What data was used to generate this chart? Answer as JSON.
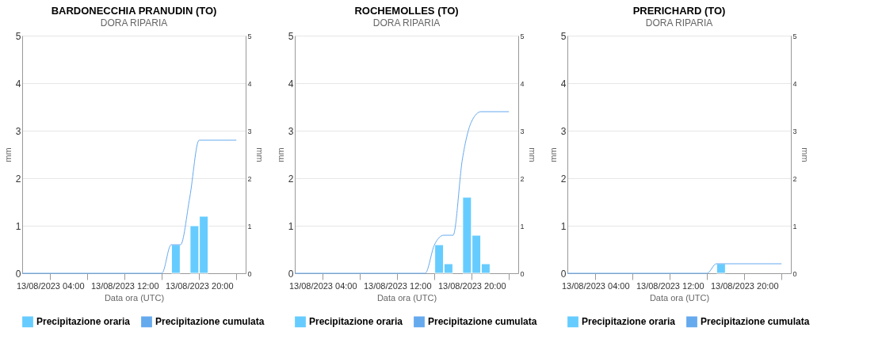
{
  "chart_data": [
    {
      "type": "bar",
      "title": "BARDONECCHIA PRANUDIN (TO)",
      "subtitle": "DORA RIPARIA",
      "xlabel": "Data ora (UTC)",
      "ylabel": "mm",
      "y2label": "mm",
      "xlim": [
        "2023-08-13T01:00",
        "2023-08-14T01:00"
      ],
      "xticks": [
        {
          "value": "2023-08-13T04:00",
          "label": "13/08/2023 04:00"
        },
        {
          "value": "2023-08-13T08:00",
          "label": null
        },
        {
          "value": "2023-08-13T12:00",
          "label": "13/08/2023 12:00"
        },
        {
          "value": "2023-08-13T16:00",
          "label": null
        },
        {
          "value": "2023-08-13T20:00",
          "label": "13/08/2023 20:00"
        },
        {
          "value": "2023-08-14T00:00",
          "label": null
        }
      ],
      "ylim": [
        0,
        5
      ],
      "yticks": [
        0,
        1,
        2,
        3,
        4,
        5
      ],
      "y2lim": [
        0,
        5
      ],
      "y2ticks": [
        0,
        1,
        2,
        3,
        4,
        5
      ],
      "grid": "y",
      "legend": "bottom",
      "series": [
        {
          "name": "Precipitazione oraria",
          "type": "bar",
          "color": "#66ccff",
          "x": [
            "2023-08-13T17:30",
            "2023-08-13T19:30",
            "2023-08-13T20:30"
          ],
          "values": [
            0.6,
            1.0,
            1.2
          ]
        },
        {
          "name": "Precipitazione cumulata",
          "type": "line",
          "axis": "y2",
          "color": "#66aaee",
          "x": [
            "2023-08-13T01:00",
            "2023-08-13T16:00",
            "2023-08-13T17:00",
            "2023-08-13T18:00",
            "2023-08-13T19:00",
            "2023-08-13T20:00",
            "2023-08-13T21:00",
            "2023-08-14T00:00"
          ],
          "values": [
            0,
            0,
            0.6,
            0.6,
            1.6,
            2.8,
            2.8,
            2.8
          ]
        }
      ]
    },
    {
      "type": "bar",
      "title": "ROCHEMOLLES (TO)",
      "subtitle": "DORA RIPARIA",
      "xlabel": "Data ora (UTC)",
      "ylabel": "mm",
      "y2label": "mm",
      "xlim": [
        "2023-08-13T01:00",
        "2023-08-14T01:00"
      ],
      "xticks": [
        {
          "value": "2023-08-13T04:00",
          "label": "13/08/2023 04:00"
        },
        {
          "value": "2023-08-13T08:00",
          "label": null
        },
        {
          "value": "2023-08-13T12:00",
          "label": "13/08/2023 12:00"
        },
        {
          "value": "2023-08-13T16:00",
          "label": null
        },
        {
          "value": "2023-08-13T20:00",
          "label": "13/08/2023 20:00"
        },
        {
          "value": "2023-08-14T00:00",
          "label": null
        }
      ],
      "ylim": [
        0,
        5
      ],
      "yticks": [
        0,
        1,
        2,
        3,
        4,
        5
      ],
      "y2lim": [
        0,
        5
      ],
      "y2ticks": [
        0,
        1,
        2,
        3,
        4,
        5
      ],
      "grid": "y",
      "legend": "bottom",
      "series": [
        {
          "name": "Precipitazione oraria",
          "type": "bar",
          "color": "#66ccff",
          "x": [
            "2023-08-13T16:30",
            "2023-08-13T17:30",
            "2023-08-13T19:30",
            "2023-08-13T20:30",
            "2023-08-13T21:30"
          ],
          "values": [
            0.6,
            0.2,
            1.6,
            0.8,
            0.2
          ]
        },
        {
          "name": "Precipitazione cumulata",
          "type": "line",
          "axis": "y2",
          "color": "#66aaee",
          "x": [
            "2023-08-13T01:00",
            "2023-08-13T15:00",
            "2023-08-13T16:00",
            "2023-08-13T17:00",
            "2023-08-13T18:00",
            "2023-08-13T19:00",
            "2023-08-13T20:00",
            "2023-08-13T21:00",
            "2023-08-14T00:00"
          ],
          "values": [
            0,
            0,
            0.6,
            0.8,
            0.8,
            2.4,
            3.2,
            3.4,
            3.4
          ]
        }
      ]
    },
    {
      "type": "bar",
      "title": "PRERICHARD (TO)",
      "subtitle": "DORA RIPARIA",
      "xlabel": "Data ora (UTC)",
      "ylabel": "mm",
      "y2label": "mm",
      "xlim": [
        "2023-08-13T01:00",
        "2023-08-14T01:00"
      ],
      "xticks": [
        {
          "value": "2023-08-13T04:00",
          "label": "13/08/2023 04:00"
        },
        {
          "value": "2023-08-13T08:00",
          "label": null
        },
        {
          "value": "2023-08-13T12:00",
          "label": "13/08/2023 12:00"
        },
        {
          "value": "2023-08-13T16:00",
          "label": null
        },
        {
          "value": "2023-08-13T20:00",
          "label": "13/08/2023 20:00"
        },
        {
          "value": "2023-08-14T00:00",
          "label": null
        }
      ],
      "ylim": [
        0,
        5
      ],
      "yticks": [
        0,
        1,
        2,
        3,
        4,
        5
      ],
      "y2lim": [
        0,
        5
      ],
      "y2ticks": [
        0,
        1,
        2,
        3,
        4,
        5
      ],
      "grid": "y",
      "legend": "bottom",
      "series": [
        {
          "name": "Precipitazione oraria",
          "type": "bar",
          "color": "#66ccff",
          "x": [
            "2023-08-13T17:30"
          ],
          "values": [
            0.2
          ]
        },
        {
          "name": "Precipitazione cumulata",
          "type": "line",
          "axis": "y2",
          "color": "#66aaee",
          "x": [
            "2023-08-13T01:00",
            "2023-08-13T16:00",
            "2023-08-13T17:00",
            "2023-08-14T00:00"
          ],
          "values": [
            0,
            0,
            0.2,
            0.2
          ]
        }
      ]
    }
  ]
}
